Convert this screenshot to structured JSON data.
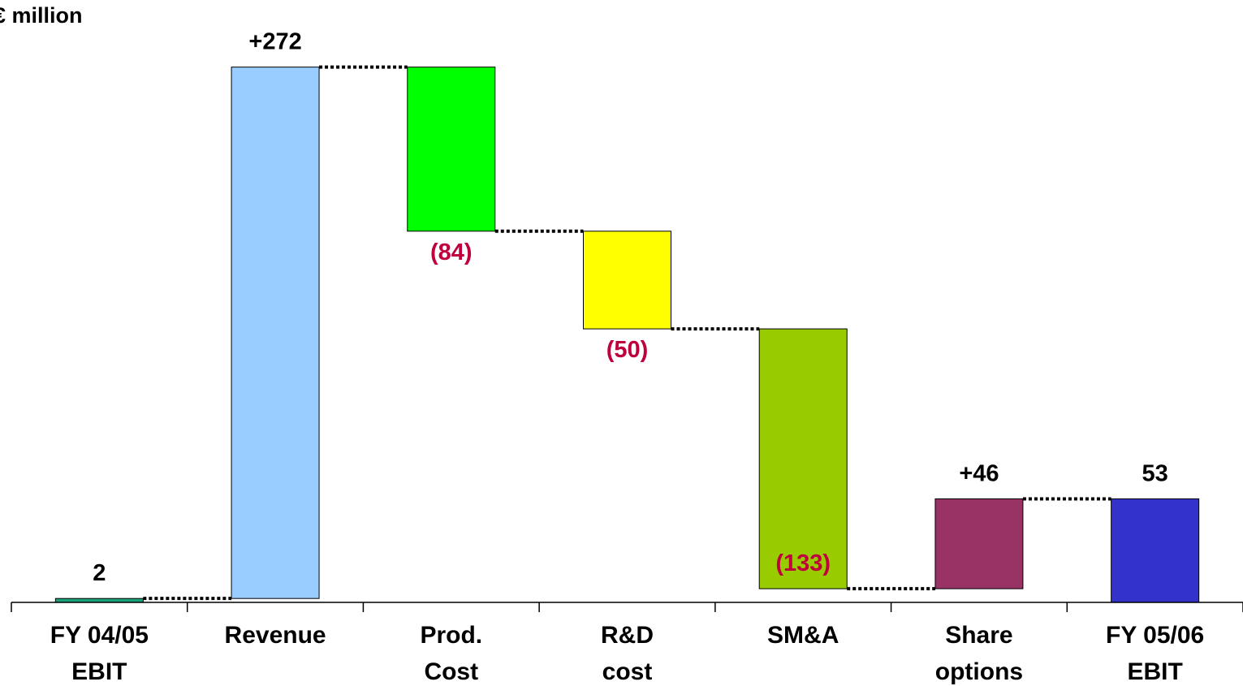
{
  "chart_data": {
    "type": "bar",
    "subtype": "waterfall",
    "unit_label": "€ million",
    "categories": [
      [
        "FY 04/05",
        "EBIT"
      ],
      [
        "Revenue"
      ],
      [
        "Prod.",
        "Cost"
      ],
      [
        "R&D",
        "cost"
      ],
      [
        "SM&A"
      ],
      [
        "Share",
        "options"
      ],
      [
        "FY 05/06",
        "EBIT"
      ]
    ],
    "values": [
      2,
      272,
      -84,
      -50,
      -133,
      46,
      53
    ],
    "data_labels": [
      "2",
      "+272",
      "(84)",
      "(50)",
      "(133)",
      "+46",
      "53"
    ],
    "bar_kinds": [
      "total",
      "delta",
      "delta",
      "delta",
      "delta",
      "delta",
      "total"
    ],
    "colors": [
      "#1aa37a",
      "#99ccff",
      "#00ff00",
      "#ffff00",
      "#99cc00",
      "#993366",
      "#3333cc"
    ],
    "negative_label_color": "#c0003c",
    "positive_label_color": "#000000",
    "ylim": [
      0,
      278
    ],
    "grid": false,
    "connectors": "dotted"
  }
}
